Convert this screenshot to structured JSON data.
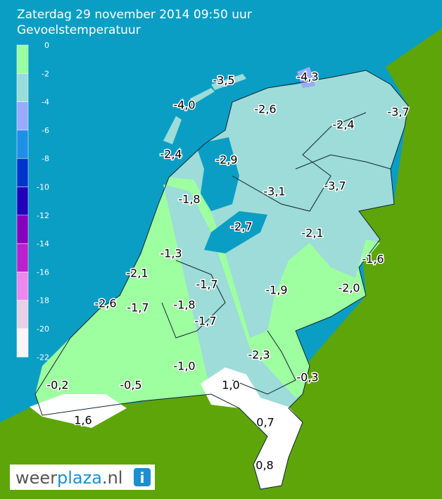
{
  "header": {
    "title": "Zaterdag 29 november 2014 09:50 uur",
    "subtitle": "Gevoelstemperatuur"
  },
  "legend": [
    {
      "label": "0",
      "color": "#99ffa0"
    },
    {
      "label": "-2",
      "color": "#99dddb"
    },
    {
      "label": "-4",
      "color": "#99aaff"
    },
    {
      "label": "-6",
      "color": "#1e90e6"
    },
    {
      "label": "-8",
      "color": "#0033cc"
    },
    {
      "label": "-10",
      "color": "#2200bb"
    },
    {
      "label": "-12",
      "color": "#8800bb"
    },
    {
      "label": "-14",
      "color": "#bb22cc"
    },
    {
      "label": "-16",
      "color": "#ee88ee"
    },
    {
      "label": "-18",
      "color": "#e8d0e8"
    },
    {
      "label": "-20",
      "color": "#f8f4fa"
    },
    {
      "label": "-22"
    }
  ],
  "stations": [
    "-3,5",
    "-4,3",
    "-4,0",
    "-2,6",
    "-3,7",
    "-2,4",
    "-2,4",
    "-2,9",
    "-1,8",
    "-3,1",
    "-3,7",
    "-2,7",
    "-2,1",
    "-1,3",
    "-1,6",
    "-2,1",
    "-1,7",
    "-1,9",
    "-2,0",
    "-2,6",
    "-1,7",
    "-1,8",
    "-1,7",
    "-2,3",
    "-1,0",
    "-0,3",
    "-0,2",
    "-0,5",
    "1,0",
    "1,6",
    "0,7",
    "0,8"
  ],
  "logo": {
    "parts": [
      "weer",
      "plaza",
      ".nl"
    ],
    "icon": "i"
  }
}
